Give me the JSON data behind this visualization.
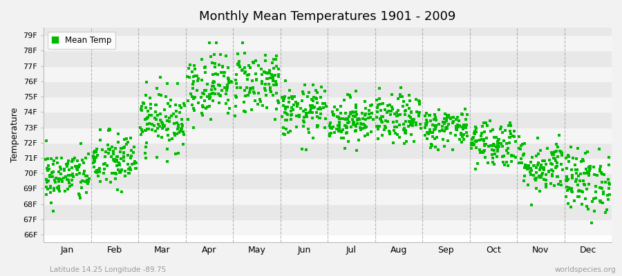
{
  "title": "Monthly Mean Temperatures 1901 - 2009",
  "ylabel": "Temperature",
  "xlabel_labels": [
    "Jan",
    "Feb",
    "Mar",
    "Apr",
    "May",
    "Jun",
    "Jul",
    "Aug",
    "Sep",
    "Oct",
    "Nov",
    "Dec"
  ],
  "ytick_labels": [
    "66F",
    "67F",
    "68F",
    "69F",
    "70F",
    "71F",
    "72F",
    "73F",
    "74F",
    "75F",
    "76F",
    "77F",
    "78F",
    "79F"
  ],
  "ytick_values": [
    66,
    67,
    68,
    69,
    70,
    71,
    72,
    73,
    74,
    75,
    76,
    77,
    78,
    79
  ],
  "ylim": [
    65.5,
    79.5
  ],
  "dot_color": "#00bb00",
  "dot_size": 5,
  "background_color": "#f2f2f2",
  "plot_bg_color": "#ffffff",
  "band_color_dark": "#e8e8e8",
  "band_color_light": "#f5f5f5",
  "dashed_line_color": "#999999",
  "subtitle": "Latitude 14.25 Longitude -89.75",
  "watermark": "worldspecies.org",
  "legend_label": "Mean Temp",
  "n_years": 109,
  "month_means": [
    69.8,
    70.8,
    73.5,
    75.8,
    76.0,
    74.0,
    73.5,
    73.5,
    73.0,
    72.0,
    70.5,
    69.5
  ],
  "month_stds": [
    0.85,
    0.95,
    1.0,
    1.1,
    1.1,
    0.85,
    0.75,
    0.8,
    0.65,
    0.8,
    0.9,
    1.05
  ],
  "month_mins": [
    66.5,
    67.0,
    70.5,
    73.0,
    73.5,
    71.0,
    71.5,
    71.5,
    71.0,
    69.5,
    66.5,
    66.0
  ],
  "month_maxs": [
    73.5,
    74.0,
    76.5,
    78.5,
    78.5,
    76.5,
    75.5,
    76.5,
    75.5,
    75.5,
    75.0,
    74.5
  ]
}
